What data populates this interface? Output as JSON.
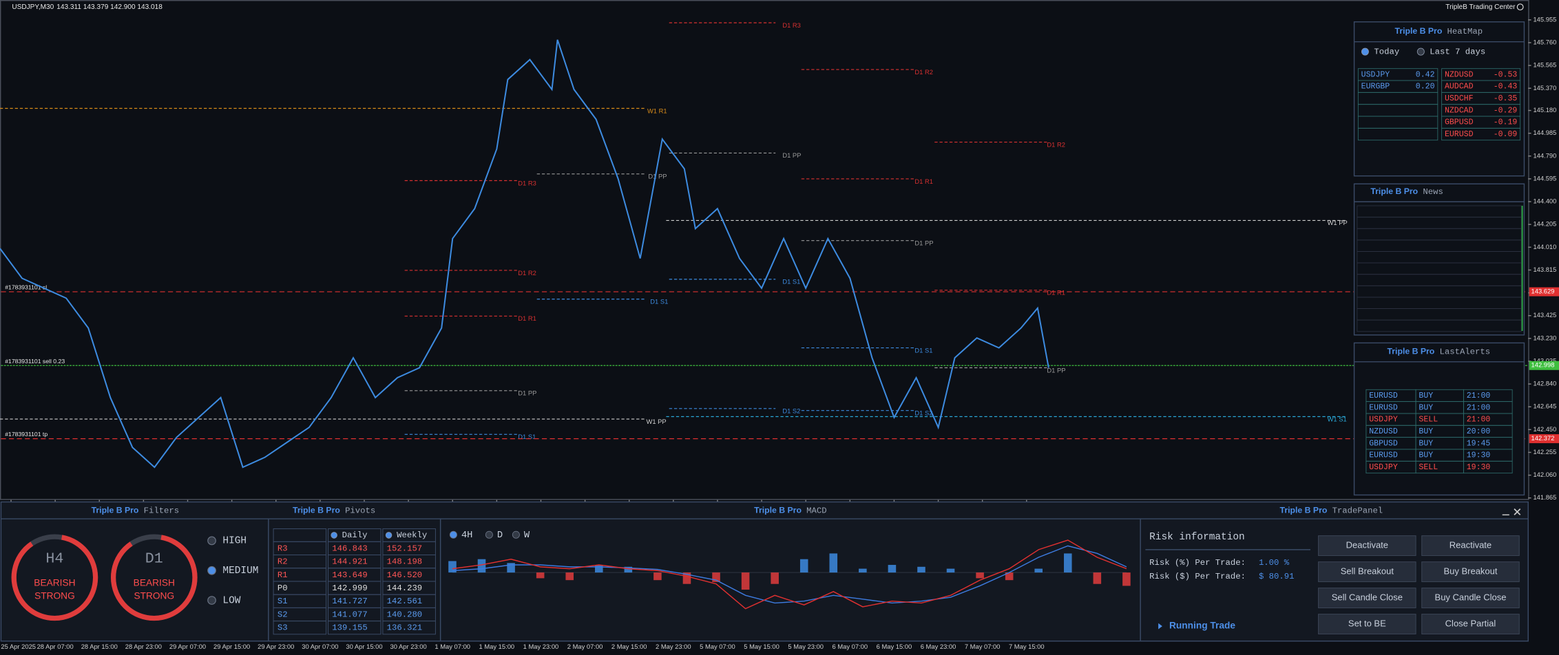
{
  "header": {
    "symbol": "USDJPY,M30",
    "ohlc": "143.311 143.379 142.900 143.018",
    "brand": "TripleB Trading Center"
  },
  "chart_data": {
    "type": "line",
    "color": "#3d8be0",
    "x": [
      -2,
      2,
      6,
      10,
      14,
      18,
      22,
      26,
      30,
      34,
      38,
      42,
      46,
      50,
      54,
      58,
      62,
      66,
      70,
      74,
      78,
      80,
      84,
      88,
      90,
      94,
      98,
      99,
      102,
      106,
      110,
      114,
      118,
      122,
      124,
      128,
      132,
      136,
      140,
      144,
      148,
      152,
      156,
      160,
      164,
      168,
      171,
      175,
      179,
      183,
      186,
      188
    ],
    "values": [
      143.999,
      143.744,
      143.659,
      143.574,
      143.319,
      142.724,
      142.298,
      142.128,
      142.384,
      142.554,
      142.724,
      142.128,
      142.213,
      142.341,
      142.469,
      142.724,
      143.064,
      142.724,
      142.894,
      142.979,
      143.319,
      144.084,
      144.34,
      144.85,
      145.445,
      145.615,
      145.36,
      145.785,
      145.36,
      145.105,
      144.595,
      143.914,
      144.935,
      144.68,
      144.169,
      144.34,
      143.914,
      143.659,
      144.084,
      143.659,
      144.084,
      143.744,
      143.064,
      142.554,
      142.894,
      142.469,
      143.064,
      143.234,
      143.149,
      143.319,
      143.489,
      142.979
    ],
    "xlim": [
      -2,
      243
    ],
    "ylim": [
      141.848,
      146.125
    ],
    "xticks": [
      {
        "value": 0,
        "label": "25 Apr 2025"
      },
      {
        "value": 8,
        "label": "28 Apr 07:00"
      },
      {
        "value": 16,
        "label": "28 Apr 15:00"
      },
      {
        "value": 24,
        "label": "28 Apr 23:00"
      },
      {
        "value": 32,
        "label": "29 Apr 07:00"
      },
      {
        "value": 40,
        "label": "29 Apr 15:00"
      },
      {
        "value": 48,
        "label": "29 Apr 23:00"
      },
      {
        "value": 56,
        "label": "30 Apr 07:00"
      },
      {
        "value": 64,
        "label": "30 Apr 15:00"
      },
      {
        "value": 72,
        "label": "30 Apr 23:00"
      },
      {
        "value": 80,
        "label": "1 May 07:00"
      },
      {
        "value": 88,
        "label": "1 May 15:00"
      },
      {
        "value": 96,
        "label": "1 May 23:00"
      },
      {
        "value": 104,
        "label": "2 May 07:00"
      },
      {
        "value": 112,
        "label": "2 May 15:00"
      },
      {
        "value": 120,
        "label": "2 May 23:00"
      },
      {
        "value": 128,
        "label": "5 May 07:00"
      },
      {
        "value": 136,
        "label": "5 May 15:00"
      },
      {
        "value": 144,
        "label": "5 May 23:00"
      },
      {
        "value": 152,
        "label": "6 May 07:00"
      },
      {
        "value": 160,
        "label": "6 May 15:00"
      },
      {
        "value": 168,
        "label": "6 May 23:00"
      },
      {
        "value": 176,
        "label": "7 May 07:00"
      },
      {
        "value": 184,
        "label": "7 May 15:00"
      }
    ],
    "yticks": [
      145.955,
      {
        "value": 145.76,
        "label": "145.760"
      },
      145.565,
      {
        "value": 145.37,
        "label": "145.370"
      },
      {
        "value": 145.18,
        "label": "145.180"
      },
      144.985,
      {
        "value": 144.79,
        "label": "144.790"
      },
      144.595,
      {
        "value": 144.4,
        "label": "144.400"
      },
      144.205,
      {
        "value": 144.01,
        "label": "144.010"
      },
      143.815,
      {
        "value": 143.62,
        "label": "143.620"
      },
      143.425,
      {
        "value": 143.23,
        "label": "143.230"
      },
      143.035,
      {
        "value": 142.84,
        "label": "142.840"
      },
      142.645,
      {
        "value": 142.45,
        "label": "142.450"
      },
      142.255,
      {
        "value": 142.06,
        "label": "142.060"
      },
      141.865
    ],
    "levels": [
      {
        "label": "W1 R1",
        "value": 145.198,
        "color": "#d98c1a"
      },
      {
        "label": "W1 PP",
        "value": 142.54,
        "color": "#cfcfcf"
      },
      {
        "label": "W1 PP",
        "value": 144.239,
        "color": "#cfcfcf"
      },
      {
        "label": "W1 S1",
        "value": 142.561,
        "color": "#2aa8d8"
      },
      {
        "label": "D1 R3",
        "value": 145.93,
        "color": "#d83030"
      },
      {
        "label": "D1 R2",
        "value": 145.53,
        "color": "#d83030"
      },
      {
        "label": "D1 R3",
        "value": 144.58,
        "color": "#d83030"
      },
      {
        "label": "D1 R2",
        "value": 143.812,
        "color": "#d83030"
      },
      {
        "label": "D1 R1",
        "value": 143.421,
        "color": "#d83030"
      },
      {
        "label": "D1 PP",
        "value": 142.783,
        "color": "#9a9a9a"
      },
      {
        "label": "D1 S1",
        "value": 142.409,
        "color": "#3d8be0"
      },
      {
        "label": "D1 PP",
        "value": 144.637,
        "color": "#9a9a9a"
      },
      {
        "label": "D1 S1",
        "value": 143.566,
        "color": "#3d8be0"
      },
      {
        "label": "D1 PP",
        "value": 144.816,
        "color": "#9a9a9a"
      },
      {
        "label": "D1 S1",
        "value": 143.736,
        "color": "#3d8be0"
      },
      {
        "label": "D1 S2",
        "value": 142.63,
        "color": "#3d8be0"
      },
      {
        "label": "D1 R1",
        "value": 144.595,
        "color": "#d83030"
      },
      {
        "label": "D1 PP",
        "value": 144.067,
        "color": "#9a9a9a"
      },
      {
        "label": "D1 S1",
        "value": 143.149,
        "color": "#3d8be0"
      },
      {
        "label": "D1 S2",
        "value": 142.613,
        "color": "#3d8be0"
      },
      {
        "label": "D1 R2",
        "value": 144.909,
        "color": "#d83030"
      },
      {
        "label": "D1 R1",
        "value": 143.642,
        "color": "#d83030"
      },
      {
        "label": "D1 PP",
        "value": 142.979,
        "color": "#9a9a9a"
      }
    ],
    "trades": [
      {
        "label": "#1783931101 sl",
        "value": 143.629,
        "color": "#e03030"
      },
      {
        "label": "#1783931101 sell 0.23",
        "value": 142.998,
        "color": "#3fbf3f"
      },
      {
        "label": "#1783931101 tp",
        "value": 142.372,
        "color": "#e03030"
      }
    ]
  },
  "brand": "Triple B Pro",
  "heatmap": {
    "title": "HeatMap",
    "tabs": [
      "Today",
      "Last 7 days"
    ],
    "selected": 0,
    "gainers": [
      [
        "USDJPY",
        "0.42"
      ],
      [
        "EURGBP",
        "0.20"
      ]
    ],
    "losers": [
      [
        "NZDUSD",
        "-0.53"
      ],
      [
        "AUDCAD",
        "-0.43"
      ],
      [
        "USDCHF",
        "-0.35"
      ],
      [
        "NZDCAD",
        "-0.29"
      ],
      [
        "GBPUSD",
        "-0.19"
      ],
      [
        "EURUSD",
        "-0.09"
      ]
    ]
  },
  "news": {
    "title": "News"
  },
  "alerts": {
    "title": "LastAlerts",
    "rows": [
      [
        "EURUSD",
        "BUY",
        "21:00"
      ],
      [
        "EURUSD",
        "BUY",
        "21:00"
      ],
      [
        "USDJPY",
        "SELL",
        "21:00"
      ],
      [
        "NZDUSD",
        "BUY",
        "20:00"
      ],
      [
        "GBPUSD",
        "BUY",
        "19:45"
      ],
      [
        "EURUSD",
        "BUY",
        "19:30"
      ],
      [
        "USDJPY",
        "SELL",
        "19:30"
      ]
    ]
  },
  "filters": {
    "title": "Filters",
    "gauges": [
      {
        "tf": "H4",
        "state": [
          "BEARISH",
          "STRONG"
        ]
      },
      {
        "tf": "D1",
        "state": [
          "BEARISH",
          "STRONG"
        ]
      }
    ],
    "levels": [
      "HIGH",
      "MEDIUM",
      "LOW"
    ],
    "selected": 1
  },
  "pivots": {
    "title": "Pivots",
    "columns": [
      "Daily",
      "Weekly"
    ],
    "rows": [
      [
        "R3",
        "146.843",
        "152.157"
      ],
      [
        "R2",
        "144.921",
        "148.198"
      ],
      [
        "R1",
        "143.649",
        "146.520"
      ],
      [
        "P0",
        "142.999",
        "144.239"
      ],
      [
        "S1",
        "141.727",
        "142.561"
      ],
      [
        "S2",
        "141.077",
        "140.280"
      ],
      [
        "S3",
        "139.155",
        "136.321"
      ]
    ]
  },
  "macd": {
    "type": "bar",
    "title": "MACD",
    "timeframes": [
      "4H",
      "D",
      "W"
    ],
    "selected": 0,
    "ylim": [
      -1.2,
      1.2
    ],
    "histogram": [
      0.3,
      0.35,
      0.25,
      -0.15,
      -0.2,
      0.2,
      0.15,
      -0.2,
      -0.3,
      -0.25,
      -0.45,
      -0.3,
      0.35,
      0.5,
      0.1,
      0.2,
      0.15,
      0.1,
      -0.15,
      -0.2,
      0.1,
      0.5,
      -0.3,
      -0.35
    ],
    "macd": [
      0.1,
      0.2,
      0.35,
      0.15,
      0.1,
      0.2,
      0.1,
      0.05,
      -0.1,
      -0.3,
      -0.95,
      -0.6,
      -0.85,
      -0.5,
      -0.9,
      -0.75,
      -0.8,
      -0.6,
      -0.2,
      0.1,
      0.6,
      0.85,
      0.4,
      0.1
    ],
    "signal": [
      0.05,
      0.1,
      0.2,
      0.2,
      0.15,
      0.15,
      0.12,
      0.08,
      -0.05,
      -0.2,
      -0.6,
      -0.8,
      -0.75,
      -0.6,
      -0.7,
      -0.8,
      -0.75,
      -0.65,
      -0.35,
      0.0,
      0.4,
      0.7,
      0.5,
      0.15
    ],
    "colors": {
      "up": "#3d8be0",
      "down": "#e03c3c",
      "macd": "#e03030",
      "signal": "#3d7be0"
    }
  },
  "trade_panel": {
    "title": "TradePanel",
    "heading": "Risk information",
    "rows": [
      [
        "Risk (%) Per Trade:",
        "1.00 %"
      ],
      [
        "Risk ($) Per Trade:",
        "$ 80.91"
      ]
    ],
    "running": "Running Trade",
    "buttons": [
      "Deactivate",
      "Reactivate",
      "Sell Breakout",
      "Buy Breakout",
      "Sell Candle Close",
      "Buy Candle Close",
      "Set to BE",
      "Close Partial"
    ]
  }
}
